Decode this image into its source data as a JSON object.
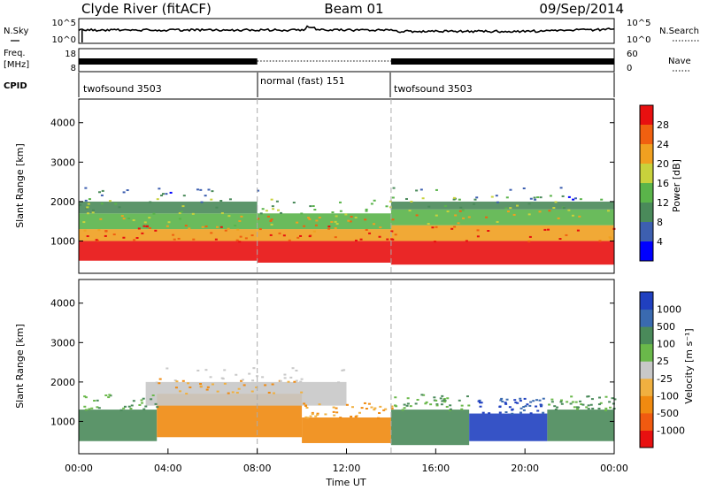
{
  "header": {
    "station": "Clyde River (fitACF)",
    "beam": "Beam 01",
    "date": "09/Sep/2014"
  },
  "noise_panel": {
    "left_label": "N.Sky",
    "right_label": "N.Search",
    "left_ticks": [
      "10^5",
      "10^0"
    ],
    "right_ticks": [
      "10^5",
      "10^0"
    ]
  },
  "freq_panel": {
    "left_label_1": "Freq.",
    "left_label_2": "[MHz]",
    "right_label": "Nave",
    "left_ticks": [
      "18",
      "8"
    ],
    "right_ticks": [
      "60",
      "0"
    ]
  },
  "cpid_panel": {
    "label": "CPID",
    "segments": [
      {
        "name": "twofsound 3503",
        "start_hour": 0,
        "end_hour": 8
      },
      {
        "name": "normal (fast) 151",
        "start_hour": 8,
        "end_hour": 14
      },
      {
        "name": "twofsound 3503",
        "start_hour": 14,
        "end_hour": 24
      }
    ]
  },
  "power_panel": {
    "ylabel": "Slant Range [km]",
    "yticks": [
      "1000",
      "2000",
      "3000",
      "4000"
    ],
    "colorbar_label": "Power [dB]",
    "colorbar_ticks": [
      "4",
      "8",
      "12",
      "16",
      "20",
      "24",
      "28"
    ]
  },
  "velocity_panel": {
    "ylabel": "Slant Range [km]",
    "yticks": [
      "1000",
      "2000",
      "3000",
      "4000"
    ],
    "colorbar_label": "Velocity [m s⁻¹]",
    "colorbar_ticks": [
      "1000",
      "500",
      "100",
      "25",
      "-25",
      "-100",
      "-500",
      "-1000"
    ]
  },
  "xaxis": {
    "label": "Time UT",
    "ticks": [
      "00:00",
      "04:00",
      "08:00",
      "12:00",
      "16:00",
      "20:00",
      "00:00"
    ]
  },
  "colors": {
    "power_scale": [
      "#0000ff",
      "#3d5fb0",
      "#4a8a5a",
      "#5ab44a",
      "#c8d23c",
      "#f0a020",
      "#f06010",
      "#e81010"
    ],
    "velocity_scale": [
      "#2040c0",
      "#3a6ab0",
      "#4a8a5a",
      "#6ab84a",
      "#c8c8c8",
      "#f0b040",
      "#f08a10",
      "#f05a10",
      "#e81010"
    ],
    "divider": "#aaaaaa"
  },
  "chart_data": {
    "type": "heatmap",
    "x_unit": "hour UT",
    "xlim": [
      0,
      24
    ],
    "ylim_km": [
      180,
      4600
    ],
    "mode_changes_hour": [
      8,
      14
    ],
    "power_bands": [
      {
        "x0": 0,
        "x1": 8,
        "y0": 500,
        "y1": 1000,
        "value": 28
      },
      {
        "x0": 0,
        "x1": 8,
        "y0": 1000,
        "y1": 1300,
        "value": 20
      },
      {
        "x0": 0,
        "x1": 8,
        "y0": 1300,
        "y1": 1700,
        "value": 14
      },
      {
        "x0": 0,
        "x1": 8,
        "y0": 1700,
        "y1": 2000,
        "value": 8
      },
      {
        "x0": 8,
        "x1": 14,
        "y0": 450,
        "y1": 1000,
        "value": 28
      },
      {
        "x0": 8,
        "x1": 14,
        "y0": 1000,
        "y1": 1300,
        "value": 22
      },
      {
        "x0": 8,
        "x1": 14,
        "y0": 1300,
        "y1": 1700,
        "value": 14
      },
      {
        "x0": 14,
        "x1": 24,
        "y0": 400,
        "y1": 1000,
        "value": 28
      },
      {
        "x0": 14,
        "x1": 24,
        "y0": 1000,
        "y1": 1400,
        "value": 22
      },
      {
        "x0": 14,
        "x1": 24,
        "y0": 1400,
        "y1": 1800,
        "value": 14
      },
      {
        "x0": 14,
        "x1": 24,
        "y0": 1800,
        "y1": 2000,
        "value": 8
      }
    ],
    "velocity_bands": [
      {
        "x0": 0,
        "x1": 3.5,
        "y0": 500,
        "y1": 1300,
        "value": 100
      },
      {
        "x0": 3.5,
        "x1": 10,
        "y0": 600,
        "y1": 1700,
        "value": -100
      },
      {
        "x0": 10,
        "x1": 14,
        "y0": 450,
        "y1": 1100,
        "value": -100
      },
      {
        "x0": 14,
        "x1": 17.5,
        "y0": 400,
        "y1": 1300,
        "value": 100
      },
      {
        "x0": 17.5,
        "x1": 21,
        "y0": 500,
        "y1": 1200,
        "value": 1000
      },
      {
        "x0": 21,
        "x1": 24,
        "y0": 500,
        "y1": 1300,
        "value": 100
      },
      {
        "x0": 3,
        "x1": 12,
        "y0": 1400,
        "y1": 2000,
        "value": 0
      }
    ]
  }
}
